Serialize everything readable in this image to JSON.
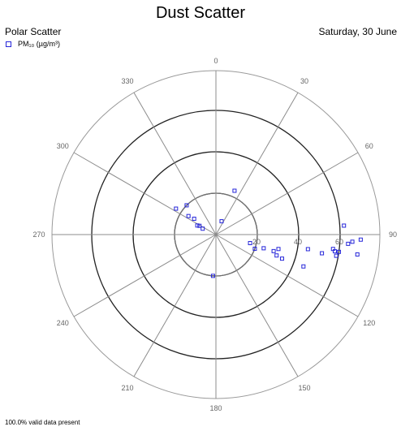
{
  "header": {
    "title": "Dust Scatter",
    "subtitle_left": "Polar Scatter",
    "subtitle_right": "Saturday, 30 June"
  },
  "legend": {
    "label": "PM₁₀ (µg/m³)",
    "color": "#2626d9"
  },
  "footer": {
    "text": "100.0% valid data present"
  },
  "chart_data": {
    "type": "scatter",
    "coordinate_system": "polar",
    "angle_ticks": [
      "0",
      "30",
      "60",
      "90",
      "120",
      "150",
      "180",
      "210",
      "240",
      "270",
      "300",
      "330"
    ],
    "radial_ticks": [
      "20",
      "40",
      "60"
    ],
    "radial_max": 80,
    "legend_placement": "top-left",
    "series": [
      {
        "name": "PM₁₀ (µg/m³)",
        "color": "#2626d9",
        "points": [
          {
            "angle": 23,
            "r": 23
          },
          {
            "angle": 303,
            "r": 23
          },
          {
            "angle": 304,
            "r": 16
          },
          {
            "angle": 306,
            "r": 13
          },
          {
            "angle": 294,
            "r": 7
          },
          {
            "angle": 298,
            "r": 9
          },
          {
            "angle": 296,
            "r": 10
          },
          {
            "angle": 315,
            "r": 20
          },
          {
            "angle": 23,
            "r": 7
          },
          {
            "angle": 184,
            "r": 20
          },
          {
            "angle": 104,
            "r": 17
          },
          {
            "angle": 110,
            "r": 20
          },
          {
            "angle": 106,
            "r": 24
          },
          {
            "angle": 106,
            "r": 29
          },
          {
            "angle": 103,
            "r": 31
          },
          {
            "angle": 109,
            "r": 31
          },
          {
            "angle": 110,
            "r": 34
          },
          {
            "angle": 110,
            "r": 45
          },
          {
            "angle": 99,
            "r": 45
          },
          {
            "angle": 100,
            "r": 52
          },
          {
            "angle": 97,
            "r": 57
          },
          {
            "angle": 98,
            "r": 58
          },
          {
            "angle": 100,
            "r": 59
          },
          {
            "angle": 98,
            "r": 60
          },
          {
            "angle": 86,
            "r": 62
          },
          {
            "angle": 94,
            "r": 64
          },
          {
            "angle": 93,
            "r": 66
          },
          {
            "angle": 98,
            "r": 69
          },
          {
            "angle": 92,
            "r": 70
          }
        ]
      }
    ]
  }
}
